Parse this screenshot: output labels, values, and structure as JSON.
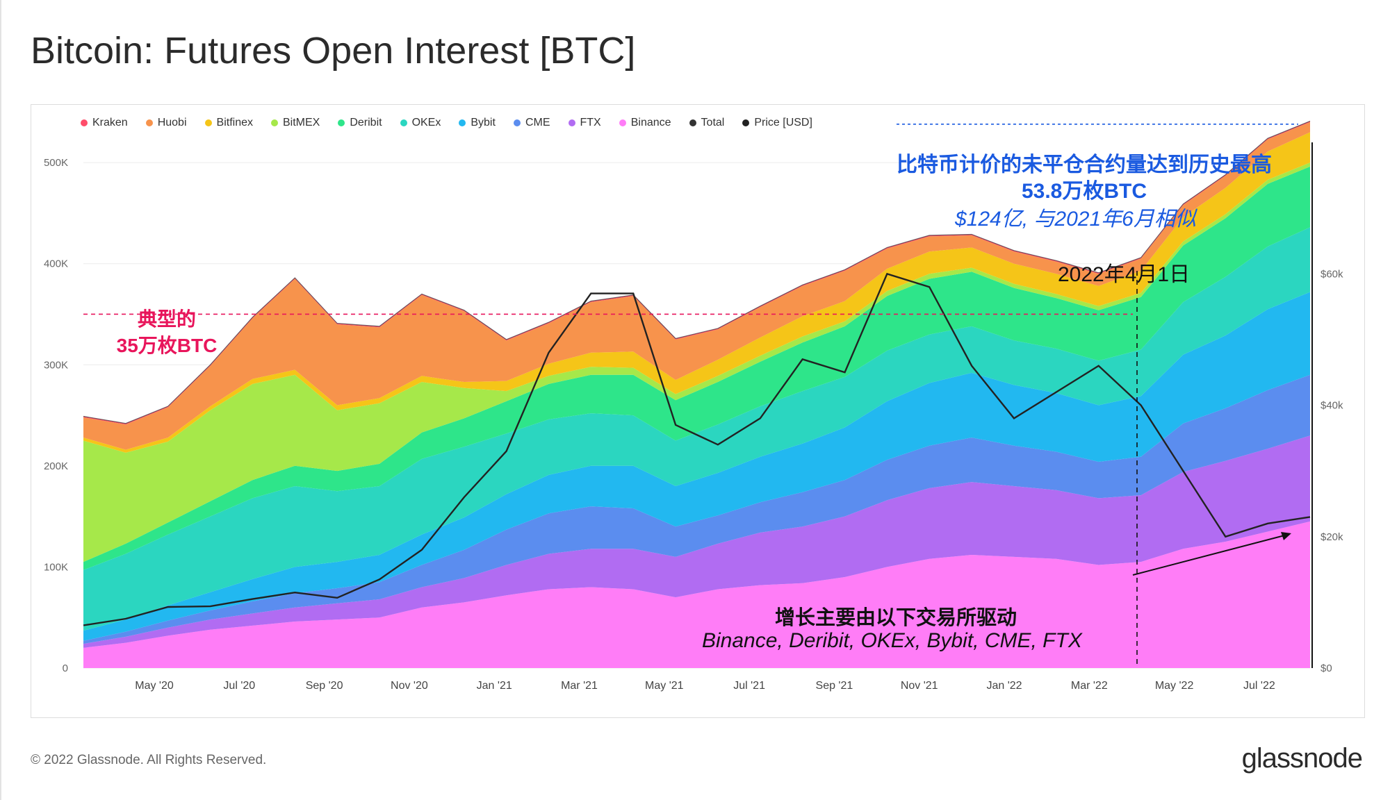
{
  "page": {
    "title": "Bitcoin: Futures Open Interest [BTC]",
    "copyright": "© 2022 Glassnode. All Rights Reserved.",
    "brand": "glassnode"
  },
  "legend": [
    {
      "label": "Kraken",
      "color": "#ff4d6a"
    },
    {
      "label": "Huobi",
      "color": "#f7934c"
    },
    {
      "label": "Bitfinex",
      "color": "#f5c518"
    },
    {
      "label": "BitMEX",
      "color": "#a6e84a"
    },
    {
      "label": "Deribit",
      "color": "#2ee58a"
    },
    {
      "label": "OKEx",
      "color": "#2bd6c0"
    },
    {
      "label": "Bybit",
      "color": "#22b8f0"
    },
    {
      "label": "CME",
      "color": "#5b8def"
    },
    {
      "label": "FTX",
      "color": "#b16cf2"
    },
    {
      "label": "Binance",
      "color": "#ff7df7"
    },
    {
      "label": "Total",
      "color": "#333333"
    },
    {
      "label": "Price [USD]",
      "color": "#222222"
    }
  ],
  "annotations": {
    "ath_line1": "比特币计价的未平仓合约量达到历史最高",
    "ath_line2": "53.8万枚BTC",
    "ath_line3": "$124亿, 与2021年6月相似",
    "typical_line1": "典型的",
    "typical_line2": "35万枚BTC",
    "date_marker": "2022年4月1日",
    "growth_line1": "增长主要由以下交易所驱动",
    "growth_line2": "Binance, Deribit, OKEx, Bybit, CME, FTX"
  },
  "chart_data": {
    "type": "area",
    "title": "Bitcoin: Futures Open Interest [BTC]",
    "x_tick_labels": [
      "May '20",
      "Jul '20",
      "Sep '20",
      "Nov '20",
      "Jan '21",
      "Mar '21",
      "May '21",
      "Jul '21",
      "Sep '21",
      "Nov '21",
      "Jan '22",
      "Mar '22",
      "May '22",
      "Jul '22"
    ],
    "y_left_tick_labels": [
      "0",
      "100K",
      "200K",
      "300K",
      "400K",
      "500K"
    ],
    "y_left_range": [
      0,
      520000
    ],
    "y_right_tick_labels": [
      "$0",
      "$20k",
      "$40k",
      "$60k"
    ],
    "y_right_range": [
      0,
      80000
    ],
    "x": [
      "2020-03",
      "2020-04",
      "2020-05",
      "2020-06",
      "2020-07",
      "2020-08",
      "2020-09",
      "2020-10",
      "2020-11",
      "2020-12",
      "2021-01",
      "2021-02",
      "2021-03",
      "2021-04",
      "2021-05",
      "2021-06",
      "2021-07",
      "2021-08",
      "2021-09",
      "2021-10",
      "2021-11",
      "2021-12",
      "2022-01",
      "2022-02",
      "2022-03",
      "2022-04",
      "2022-05",
      "2022-06",
      "2022-07",
      "2022-08"
    ],
    "series": [
      {
        "name": "Binance",
        "values": [
          20000,
          25000,
          32000,
          38000,
          42000,
          46000,
          48000,
          50000,
          60000,
          65000,
          72000,
          78000,
          80000,
          78000,
          70000,
          78000,
          82000,
          84000,
          90000,
          100000,
          108000,
          112000,
          110000,
          108000,
          102000,
          105000,
          118000,
          125000,
          135000,
          145000
        ]
      },
      {
        "name": "FTX",
        "values": [
          4000,
          6000,
          8000,
          10000,
          12000,
          14000,
          16000,
          18000,
          20000,
          24000,
          30000,
          35000,
          38000,
          40000,
          40000,
          45000,
          52000,
          56000,
          60000,
          66000,
          70000,
          72000,
          70000,
          68000,
          66000,
          66000,
          76000,
          80000,
          82000,
          85000
        ]
      },
      {
        "name": "CME",
        "values": [
          3000,
          5000,
          7000,
          9000,
          12000,
          14000,
          15000,
          17000,
          22000,
          28000,
          35000,
          40000,
          42000,
          40000,
          30000,
          28000,
          30000,
          34000,
          36000,
          40000,
          42000,
          44000,
          40000,
          38000,
          36000,
          38000,
          48000,
          52000,
          58000,
          60000
        ]
      },
      {
        "name": "Bybit",
        "values": [
          10000,
          12000,
          15000,
          18000,
          22000,
          26000,
          26000,
          27000,
          30000,
          32000,
          35000,
          38000,
          40000,
          42000,
          40000,
          42000,
          45000,
          48000,
          52000,
          58000,
          62000,
          64000,
          60000,
          58000,
          56000,
          60000,
          68000,
          72000,
          80000,
          82000
        ]
      },
      {
        "name": "OKEx",
        "values": [
          60000,
          65000,
          70000,
          75000,
          80000,
          80000,
          70000,
          68000,
          75000,
          70000,
          60000,
          55000,
          52000,
          50000,
          45000,
          48000,
          50000,
          52000,
          50000,
          50000,
          48000,
          46000,
          44000,
          44000,
          44000,
          46000,
          52000,
          58000,
          62000,
          64000
        ]
      },
      {
        "name": "Deribit",
        "values": [
          8000,
          10000,
          12000,
          15000,
          18000,
          20000,
          20000,
          22000,
          26000,
          28000,
          32000,
          35000,
          38000,
          40000,
          40000,
          42000,
          44000,
          48000,
          50000,
          54000,
          55000,
          54000,
          52000,
          50000,
          50000,
          52000,
          56000,
          58000,
          62000,
          60000
        ]
      },
      {
        "name": "BitMEX",
        "values": [
          120000,
          90000,
          80000,
          90000,
          95000,
          90000,
          60000,
          60000,
          50000,
          30000,
          10000,
          8000,
          8000,
          7000,
          6000,
          6000,
          6000,
          6000,
          5000,
          5000,
          5000,
          4000,
          4000,
          4000,
          4000,
          4000,
          4000,
          4000,
          4000,
          4000
        ]
      },
      {
        "name": "Bitfinex",
        "values": [
          3000,
          3000,
          4000,
          4000,
          5000,
          5000,
          5000,
          5000,
          6000,
          6000,
          10000,
          12000,
          14000,
          16000,
          14000,
          16000,
          18000,
          20000,
          20000,
          22000,
          22000,
          20000,
          20000,
          20000,
          20000,
          22000,
          24000,
          26000,
          28000,
          30000
        ]
      },
      {
        "name": "Huobi",
        "values": [
          20000,
          25000,
          30000,
          40000,
          60000,
          90000,
          80000,
          70000,
          80000,
          70000,
          40000,
          40000,
          50000,
          55000,
          40000,
          30000,
          30000,
          30000,
          30000,
          20000,
          15000,
          12000,
          12000,
          12000,
          12000,
          12000,
          12000,
          12000,
          12000,
          10000
        ]
      },
      {
        "name": "Kraken",
        "values": [
          1000,
          1000,
          1000,
          1000,
          1000,
          1000,
          1000,
          1000,
          1000,
          1000,
          1000,
          1000,
          1000,
          1000,
          1000,
          1000,
          1000,
          1000,
          1000,
          1000,
          1000,
          1000,
          1000,
          1000,
          1000,
          1000,
          1000,
          1000,
          1000,
          1000
        ]
      },
      {
        "name": "Price [USD]",
        "values": [
          6500,
          7500,
          9300,
          9400,
          10500,
          11500,
          10700,
          13500,
          18000,
          26000,
          33000,
          48000,
          57000,
          57000,
          37000,
          34000,
          38000,
          47000,
          45000,
          60000,
          58000,
          46000,
          38000,
          42000,
          46000,
          40000,
          30000,
          20000,
          22000,
          23000
        ]
      }
    ],
    "reference_lines": [
      {
        "label": "35万枚BTC",
        "value": 350000
      },
      {
        "label": "53.8万枚BTC",
        "value": 538000
      }
    ],
    "marker_date": "2022-04-01",
    "legend_position": "top-left",
    "grid": true
  }
}
